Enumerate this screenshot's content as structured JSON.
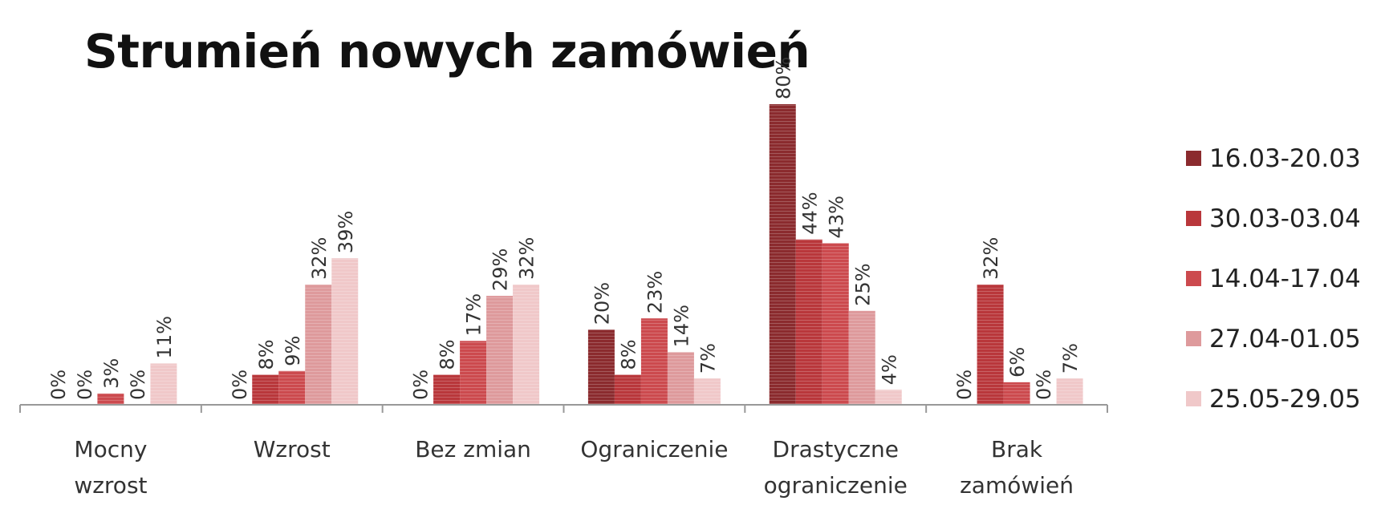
{
  "chart_data": {
    "type": "bar",
    "title": "Strumień nowych zamówień",
    "xlabel": "",
    "ylabel": "",
    "ylim": [
      0,
      80
    ],
    "grid": false,
    "legend_position": "right",
    "categories": [
      [
        "Mocny",
        "wzrost"
      ],
      [
        "Wzrost"
      ],
      [
        "Bez zmian"
      ],
      [
        "Ograniczenie"
      ],
      [
        "Drastyczne",
        "ograniczenie"
      ],
      [
        "Brak",
        "zamówień"
      ]
    ],
    "series": [
      {
        "name": "16.03-20.03",
        "color": "#8b2b2e",
        "values": [
          0,
          0,
          0,
          20,
          80,
          0
        ]
      },
      {
        "name": "30.03-03.04",
        "color": "#b9373b",
        "values": [
          0,
          8,
          8,
          8,
          44,
          32
        ]
      },
      {
        "name": "14.04-17.04",
        "color": "#cc4a4e",
        "values": [
          3,
          9,
          17,
          23,
          43,
          6
        ]
      },
      {
        "name": "27.04-01.05",
        "color": "#de9a9c",
        "values": [
          0,
          32,
          29,
          14,
          25,
          0
        ]
      },
      {
        "name": "25.05-29.05",
        "color": "#f0c8c9",
        "values": [
          11,
          39,
          32,
          7,
          4,
          7
        ]
      }
    ],
    "data_labels": [
      [
        "0%",
        "0%",
        "0%",
        "20%",
        "80%",
        "0%"
      ],
      [
        "0%",
        "8%",
        "8%",
        "8%",
        "44%",
        "32%"
      ],
      [
        "3%",
        "9%",
        "17%",
        "23%",
        "43%",
        "6%"
      ],
      [
        "0%",
        "32%",
        "29%",
        "14%",
        "25%",
        "0%"
      ],
      [
        "11%",
        "39%",
        "32%",
        "7%",
        "4%",
        "7%"
      ]
    ]
  }
}
